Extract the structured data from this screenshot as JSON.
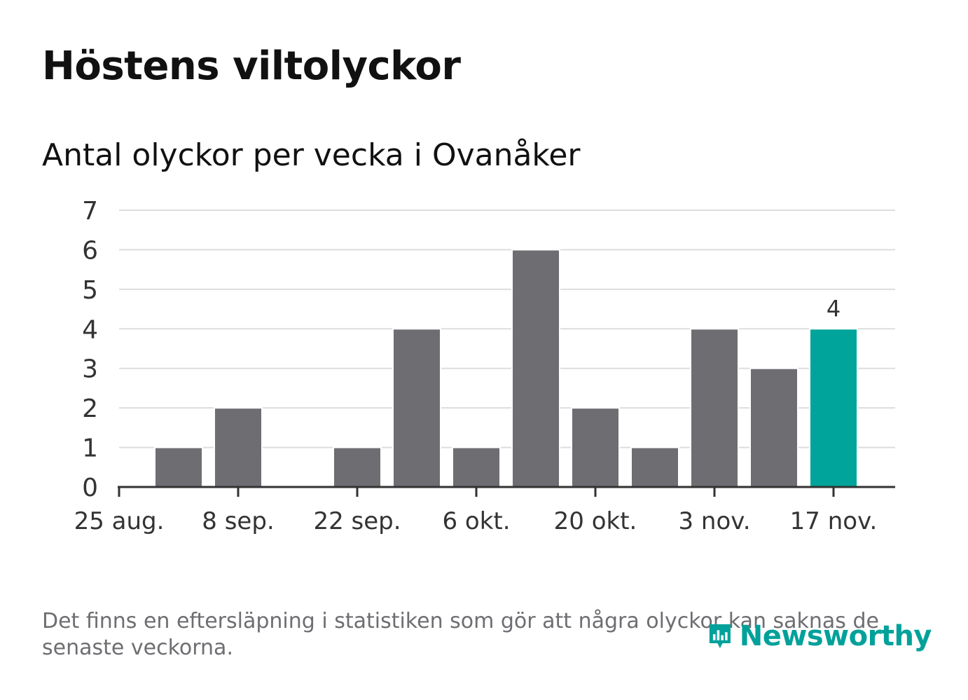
{
  "header": {
    "title": "Höstens viltolyckor",
    "subtitle": "Antal olyckor per vecka i Ovanåker"
  },
  "footer": {
    "note": "Det finns en eftersläpning i statistiken som gör att några olyckor kan saknas de senaste veckorna.",
    "brand": "Newsworthy",
    "brand_icon": "newsworthy-logo-icon"
  },
  "colors": {
    "bar": "#6e6d72",
    "highlight": "#00a49a",
    "grid": "#dddddd",
    "axis": "#333333",
    "text": "#333333"
  },
  "chart_data": {
    "type": "bar",
    "title": "",
    "xlabel": "",
    "ylabel": "",
    "ylim": [
      0,
      7
    ],
    "yticks": [
      0,
      1,
      2,
      3,
      4,
      5,
      6,
      7
    ],
    "grid": true,
    "x_tick_labels": [
      "25 aug.",
      "8 sep.",
      "22 sep.",
      "6 okt.",
      "20 okt.",
      "3 nov.",
      "17 nov."
    ],
    "values": [
      1,
      2,
      0,
      1,
      4,
      1,
      6,
      2,
      1,
      4,
      3,
      4
    ],
    "highlight_index": 11,
    "data_labels": [
      {
        "index": 11,
        "text": "4"
      }
    ]
  }
}
